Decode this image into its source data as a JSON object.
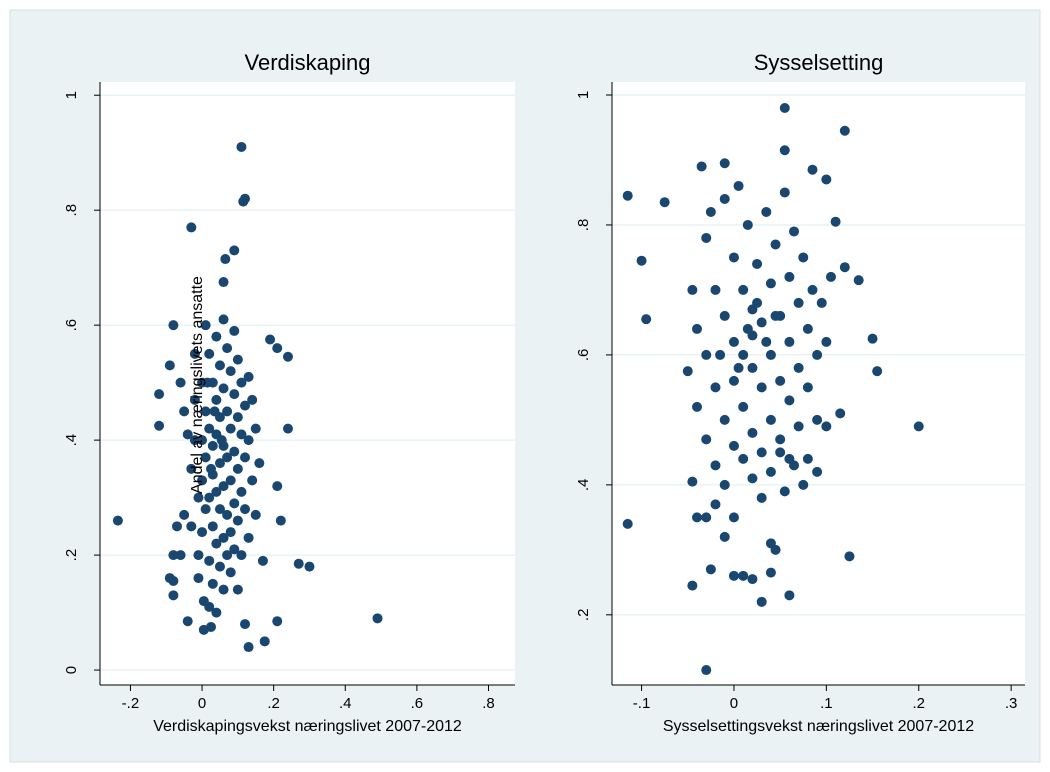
{
  "chart_data": [
    {
      "type": "scatter",
      "title": "Verdiskaping",
      "xlabel": "Verdiskapingsvekst næringslivet 2007-2012",
      "ylabel": "Andel av næringslivets ansatte",
      "xlim": [
        -0.285,
        0.874
      ],
      "ylim": [
        -0.026,
        1.023
      ],
      "grid": true,
      "xticks": [
        {
          "value": -0.2,
          "label": "-.2"
        },
        0,
        {
          "value": 0.2,
          "label": ".2"
        },
        {
          "value": 0.4,
          "label": ".4"
        },
        {
          "value": 0.6,
          "label": ".6"
        },
        {
          "value": 0.8,
          "label": ".8"
        }
      ],
      "yticks": [
        0,
        {
          "value": 0.2,
          "label": ".2"
        },
        {
          "value": 0.4,
          "label": ".4"
        },
        {
          "value": 0.6,
          "label": ".6"
        },
        {
          "value": 0.8,
          "label": ".8"
        },
        1
      ],
      "x": [
        -0.235,
        0.49,
        0.11,
        0.12,
        0.115,
        -0.03,
        0.09,
        0.065,
        0.06,
        0.19,
        0.21,
        0.24,
        0.24,
        0.3,
        0.27,
        0.21,
        0.175,
        0.13,
        0.12,
        -0.08,
        -0.12,
        -0.12,
        -0.09,
        -0.08,
        -0.09,
        -0.08,
        -0.04,
        0.005,
        0.025,
        0.21,
        0.22,
        0.16,
        0.17,
        -0.06,
        -0.05,
        -0.04,
        -0.05,
        -0.07,
        -0.08,
        -0.06,
        -0.03,
        -0.03,
        -0.02,
        -0.02,
        -0.01,
        -0.01,
        -0.01,
        0.0,
        0.0,
        0.0,
        0.0,
        0.005,
        0.01,
        0.01,
        0.01,
        0.01,
        0.02,
        0.02,
        0.02,
        0.02,
        0.02,
        0.03,
        0.03,
        0.03,
        0.03,
        0.03,
        0.04,
        0.04,
        0.04,
        0.04,
        0.04,
        0.04,
        0.05,
        0.05,
        0.05,
        0.05,
        0.05,
        0.06,
        0.06,
        0.06,
        0.06,
        0.06,
        0.06,
        0.07,
        0.07,
        0.07,
        0.07,
        0.07,
        0.08,
        0.08,
        0.08,
        0.08,
        0.08,
        0.09,
        0.09,
        0.09,
        0.09,
        0.09,
        0.1,
        0.1,
        0.1,
        0.1,
        0.1,
        0.11,
        0.11,
        0.11,
        0.11,
        0.12,
        0.12,
        0.12,
        0.13,
        0.13,
        0.13,
        0.14,
        0.14,
        0.15,
        0.15,
        -0.02,
        0.015,
        0.035,
        0.055,
        0.025
      ],
      "series": [
        {
          "color": "#1a476f",
          "values": [
            0.26,
            0.09,
            0.91,
            0.82,
            0.815,
            0.77,
            0.73,
            0.715,
            0.675,
            0.575,
            0.56,
            0.545,
            0.42,
            0.18,
            0.185,
            0.085,
            0.05,
            0.04,
            0.08,
            0.6,
            0.48,
            0.425,
            0.53,
            0.155,
            0.16,
            0.13,
            0.085,
            0.07,
            0.075,
            0.32,
            0.26,
            0.36,
            0.19,
            0.5,
            0.45,
            0.41,
            0.27,
            0.25,
            0.2,
            0.2,
            0.25,
            0.35,
            0.47,
            0.55,
            0.3,
            0.2,
            0.16,
            0.5,
            0.4,
            0.33,
            0.24,
            0.12,
            0.6,
            0.45,
            0.37,
            0.28,
            0.55,
            0.42,
            0.3,
            0.19,
            0.11,
            0.5,
            0.39,
            0.34,
            0.25,
            0.15,
            0.58,
            0.47,
            0.41,
            0.31,
            0.22,
            0.1,
            0.53,
            0.44,
            0.36,
            0.28,
            0.18,
            0.61,
            0.49,
            0.39,
            0.32,
            0.23,
            0.14,
            0.56,
            0.45,
            0.37,
            0.27,
            0.2,
            0.52,
            0.42,
            0.33,
            0.24,
            0.17,
            0.59,
            0.48,
            0.38,
            0.29,
            0.21,
            0.54,
            0.44,
            0.35,
            0.26,
            0.14,
            0.5,
            0.41,
            0.31,
            0.2,
            0.46,
            0.37,
            0.28,
            0.51,
            0.4,
            0.23,
            0.47,
            0.33,
            0.42,
            0.27,
            0.4,
            0.5,
            0.45,
            0.4,
            0.35
          ]
        }
      ]
    },
    {
      "type": "scatter",
      "title": "Sysselsetting",
      "xlabel": "Sysselsettingsvekst næringslivet 2007-2012",
      "xlim": [
        -0.132,
        0.315
      ],
      "ylim": [
        0.092,
        1.02
      ],
      "grid": true,
      "xticks": [
        {
          "value": -0.1,
          "label": "-.1"
        },
        0,
        {
          "value": 0.1,
          "label": ".1"
        },
        {
          "value": 0.2,
          "label": ".2"
        },
        {
          "value": 0.3,
          "label": ".3"
        }
      ],
      "yticks": [
        {
          "value": 0.2,
          "label": ".2"
        },
        {
          "value": 0.4,
          "label": ".4"
        },
        {
          "value": 0.6,
          "label": ".6"
        },
        {
          "value": 0.8,
          "label": ".8"
        },
        1
      ],
      "x": [
        -0.115,
        -0.115,
        -0.1,
        -0.095,
        -0.075,
        -0.03,
        0.055,
        0.12,
        0.2,
        0.155,
        0.15,
        0.125,
        0.135,
        0.12,
        -0.05,
        -0.045,
        -0.045,
        -0.025,
        0.03,
        0.06,
        0.0,
        0.01,
        0.02,
        -0.035,
        -0.01,
        0.055,
        0.085,
        0.1,
        0.11,
        0.105,
        0.1,
        0.115,
        0.1,
        0.08,
        0.09,
        0.075,
        0.05,
        0.04,
        0.045,
        0.04,
        -0.04,
        -0.03,
        -0.02,
        -0.01,
        -0.04,
        -0.04,
        -0.03,
        -0.03,
        -0.03,
        -0.02,
        -0.02,
        -0.02,
        -0.01,
        -0.01,
        -0.01,
        -0.01,
        0.0,
        0.0,
        0.0,
        0.0,
        0.005,
        0.01,
        0.01,
        0.01,
        0.01,
        0.015,
        0.02,
        0.02,
        0.02,
        0.02,
        0.02,
        0.025,
        0.03,
        0.03,
        0.03,
        0.03,
        0.035,
        0.04,
        0.04,
        0.04,
        0.04,
        0.045,
        0.05,
        0.05,
        0.05,
        0.055,
        0.06,
        0.06,
        0.06,
        0.06,
        0.065,
        0.07,
        0.07,
        0.07,
        0.075,
        0.08,
        0.08,
        0.085,
        0.09,
        0.09,
        -0.015,
        0.015,
        0.025,
        0.035,
        0.005,
        0.045,
        -0.025,
        0.0,
        0.055,
        -0.045,
        0.095,
        0.065
      ],
      "series": [
        {
          "color": "#1a476f",
          "values": [
            0.845,
            0.34,
            0.745,
            0.655,
            0.835,
            0.115,
            0.98,
            0.945,
            0.49,
            0.575,
            0.625,
            0.29,
            0.715,
            0.735,
            0.575,
            0.405,
            0.245,
            0.27,
            0.22,
            0.23,
            0.26,
            0.26,
            0.255,
            0.89,
            0.895,
            0.915,
            0.885,
            0.87,
            0.805,
            0.72,
            0.62,
            0.51,
            0.49,
            0.44,
            0.42,
            0.4,
            0.45,
            0.31,
            0.3,
            0.265,
            0.35,
            0.35,
            0.37,
            0.32,
            0.64,
            0.52,
            0.78,
            0.6,
            0.47,
            0.7,
            0.55,
            0.43,
            0.84,
            0.66,
            0.5,
            0.4,
            0.75,
            0.62,
            0.56,
            0.46,
            0.86,
            0.7,
            0.6,
            0.52,
            0.44,
            0.8,
            0.67,
            0.63,
            0.58,
            0.48,
            0.41,
            0.74,
            0.65,
            0.55,
            0.45,
            0.38,
            0.82,
            0.71,
            0.6,
            0.5,
            0.42,
            0.77,
            0.66,
            0.56,
            0.47,
            0.85,
            0.72,
            0.62,
            0.53,
            0.44,
            0.79,
            0.68,
            0.58,
            0.49,
            0.75,
            0.64,
            0.55,
            0.7,
            0.6,
            0.5,
            0.6,
            0.64,
            0.68,
            0.62,
            0.58,
            0.66,
            0.82,
            0.35,
            0.39,
            0.7,
            0.68,
            0.43
          ]
        }
      ]
    }
  ]
}
